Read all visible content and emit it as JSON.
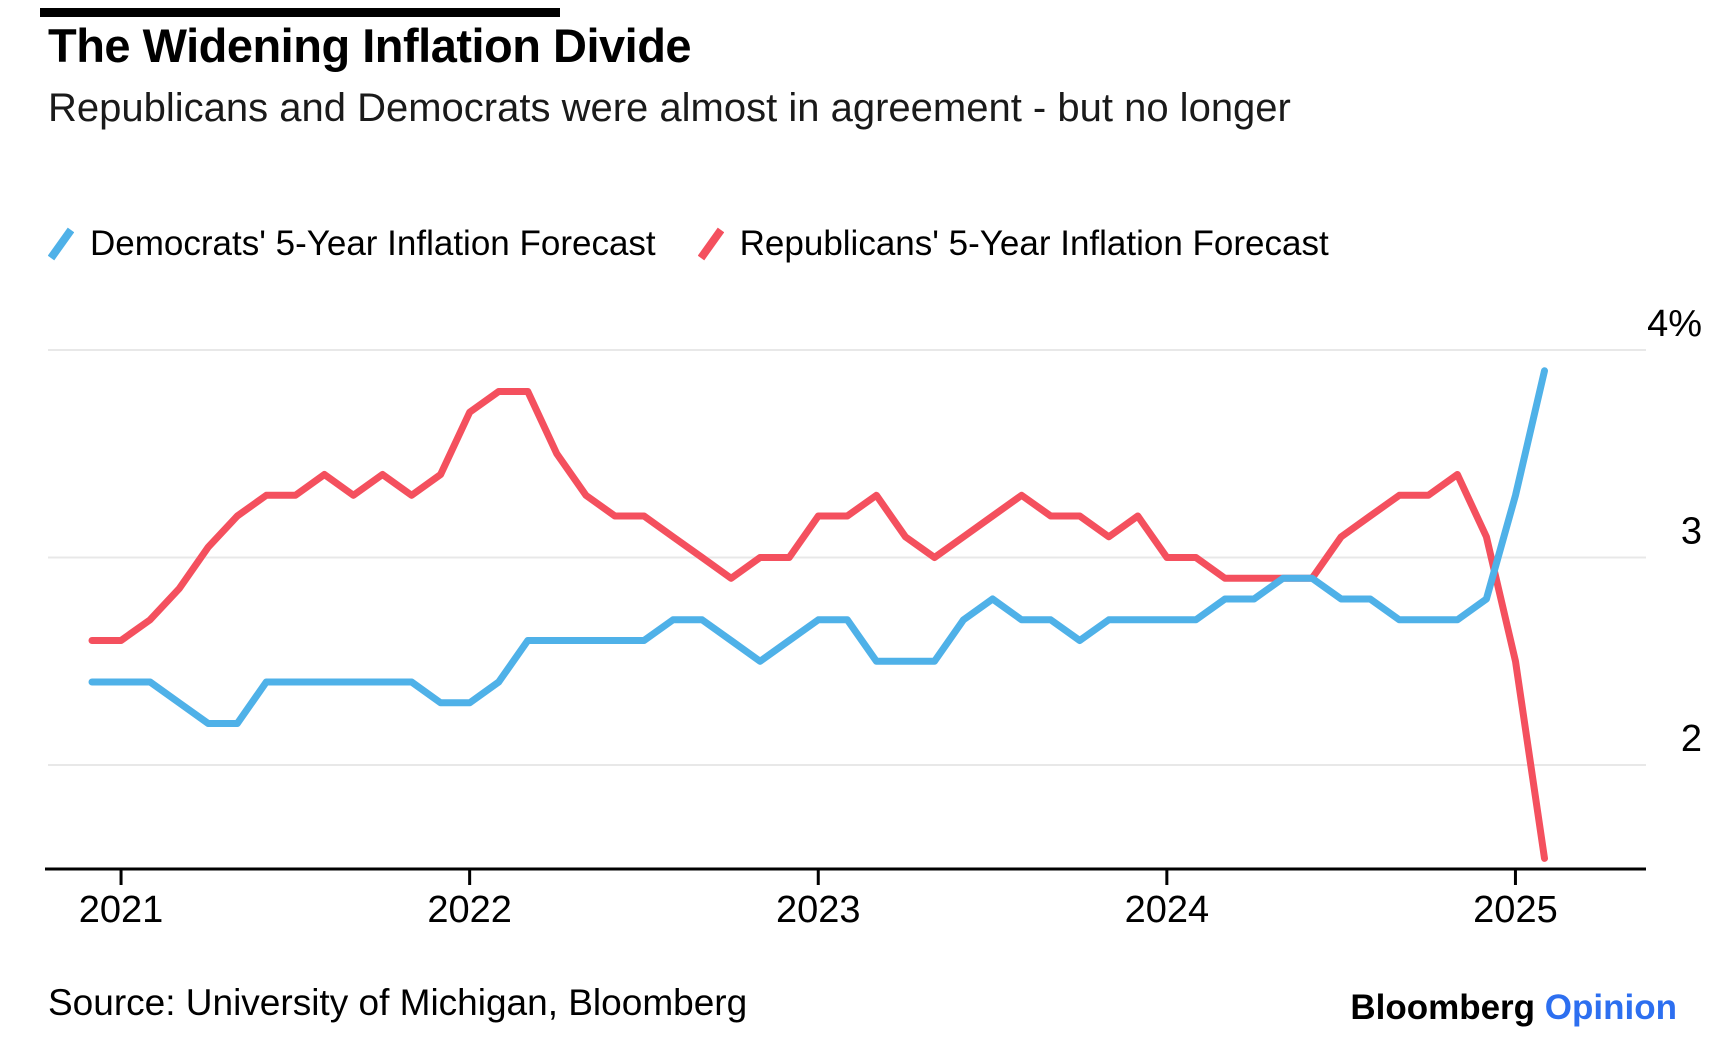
{
  "header": {
    "title": "The Widening Inflation Divide",
    "subtitle": "Republicans and Democrats were almost in agreement - but no longer"
  },
  "legend": [
    {
      "label": "Democrats' 5-Year Inflation Forecast",
      "color": "#4FB1E8"
    },
    {
      "label": "Republicans' 5-Year Inflation Forecast",
      "color": "#F4505E"
    }
  ],
  "footer": {
    "source": "Source: University of Michigan, Bloomberg",
    "brand": "Bloomberg",
    "brand_suffix": "Opinion",
    "brand_suffix_color": "#2D6FF0"
  },
  "colors": {
    "democrats_line": "#4FB1E8",
    "republicans_line": "#F4505E",
    "gridline": "#E8E8E8",
    "axis": "#000000",
    "kicker_bar": "#000000"
  },
  "chart_data": {
    "type": "line",
    "title": "The Widening Inflation Divide",
    "xlabel": "",
    "ylabel": "",
    "grid": "horizontal",
    "legend_position": "top",
    "ylim": [
      1.4,
      4.3
    ],
    "x": [
      "2020-12",
      "2021-01",
      "2021-02",
      "2021-03",
      "2021-04",
      "2021-05",
      "2021-06",
      "2021-07",
      "2021-08",
      "2021-09",
      "2021-10",
      "2021-11",
      "2021-12",
      "2022-01",
      "2022-02",
      "2022-03",
      "2022-04",
      "2022-05",
      "2022-06",
      "2022-07",
      "2022-08",
      "2022-09",
      "2022-10",
      "2022-11",
      "2022-12",
      "2023-01",
      "2023-02",
      "2023-03",
      "2023-04",
      "2023-05",
      "2023-06",
      "2023-07",
      "2023-08",
      "2023-09",
      "2023-10",
      "2023-11",
      "2023-12",
      "2024-01",
      "2024-02",
      "2024-03",
      "2024-04",
      "2024-05",
      "2024-06",
      "2024-07",
      "2024-08",
      "2024-09",
      "2024-10",
      "2024-11",
      "2024-12",
      "2025-01",
      "2025-02"
    ],
    "series": [
      {
        "name": "Democrats' 5-Year Inflation Forecast",
        "color": "#4FB1E8",
        "values": [
          2.4,
          2.4,
          2.4,
          2.3,
          2.2,
          2.2,
          2.4,
          2.4,
          2.4,
          2.4,
          2.4,
          2.4,
          2.3,
          2.3,
          2.4,
          2.6,
          2.6,
          2.6,
          2.6,
          2.6,
          2.7,
          2.7,
          2.6,
          2.5,
          2.6,
          2.7,
          2.7,
          2.5,
          2.5,
          2.5,
          2.7,
          2.8,
          2.7,
          2.7,
          2.6,
          2.7,
          2.7,
          2.7,
          2.7,
          2.8,
          2.8,
          2.9,
          2.9,
          2.8,
          2.8,
          2.7,
          2.7,
          2.7,
          2.8,
          3.3,
          3.9
        ]
      },
      {
        "name": "Republicans' 5-Year Inflation Forecast",
        "color": "#F4505E",
        "values": [
          2.6,
          2.6,
          2.7,
          2.85,
          3.05,
          3.2,
          3.3,
          3.3,
          3.4,
          3.3,
          3.4,
          3.3,
          3.4,
          3.7,
          3.8,
          3.8,
          3.5,
          3.3,
          3.2,
          3.2,
          3.1,
          3.0,
          2.9,
          3.0,
          3.0,
          3.2,
          3.2,
          3.3,
          3.1,
          3.0,
          3.1,
          3.2,
          3.3,
          3.2,
          3.2,
          3.1,
          3.2,
          3.0,
          3.0,
          2.9,
          2.9,
          2.9,
          2.9,
          3.1,
          3.2,
          3.3,
          3.3,
          3.4,
          3.1,
          2.5,
          1.55
        ]
      }
    ],
    "y_ticks": [
      {
        "value": 4,
        "label": "4%"
      },
      {
        "value": 3,
        "label": "3"
      },
      {
        "value": 2,
        "label": "2"
      }
    ],
    "x_ticks": [
      {
        "label": "2021",
        "month_index": 1
      },
      {
        "label": "2022",
        "month_index": 13
      },
      {
        "label": "2023",
        "month_index": 25
      },
      {
        "label": "2024",
        "month_index": 37
      },
      {
        "label": "2025",
        "month_index": 49
      }
    ]
  }
}
